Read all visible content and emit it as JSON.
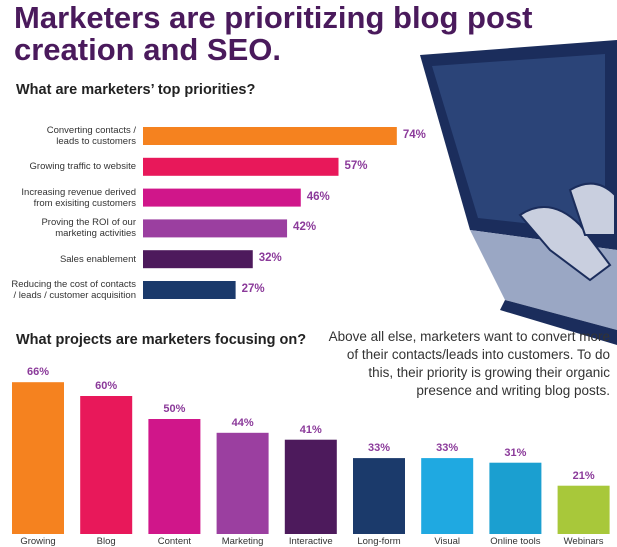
{
  "title": "Marketers are prioritizing blog post creation and SEO.",
  "note": "Above all else, marketers want to convert more of their contacts/leads into customers. To do this, their priority is growing their organic presence and writing blog posts.",
  "chart_data": [
    {
      "type": "bar",
      "orientation": "horizontal",
      "title": "What are marketers’ top priorities?",
      "categories": [
        "Converting contacts /\nleads to customers",
        "Growing traffic to website",
        "Increasing revenue derived\nfrom exisiting customers",
        "Proving the ROI of our\nmarketing activities",
        "Sales enablement",
        "Reducing the cost of contacts\n/ leads / customer acquisition"
      ],
      "values": [
        74,
        57,
        46,
        42,
        32,
        27
      ],
      "value_labels": [
        "74%",
        "57%",
        "46%",
        "42%",
        "32%",
        "27%"
      ],
      "colors": [
        "#f5821f",
        "#e8185a",
        "#d0168a",
        "#9b3fa0",
        "#4d1a5c",
        "#1b3a6b"
      ]
    },
    {
      "type": "bar",
      "orientation": "vertical",
      "title": "What projects are marketers focusing on?",
      "categories": [
        "Growing",
        "Blog",
        "Content",
        "Marketing",
        "Interactive",
        "Long-form",
        "Visual",
        "Online tools",
        "Webinars"
      ],
      "values": [
        66,
        60,
        50,
        44,
        41,
        33,
        33,
        31,
        21
      ],
      "value_labels": [
        "66%",
        "60%",
        "50%",
        "44%",
        "41%",
        "33%",
        "33%",
        "31%",
        "21%"
      ],
      "colors": [
        "#f5821f",
        "#e8185a",
        "#d0168a",
        "#9b3fa0",
        "#4d1a5c",
        "#1b3a6b",
        "#1fa9e1",
        "#1b9fd0",
        "#a8c83a"
      ]
    }
  ]
}
